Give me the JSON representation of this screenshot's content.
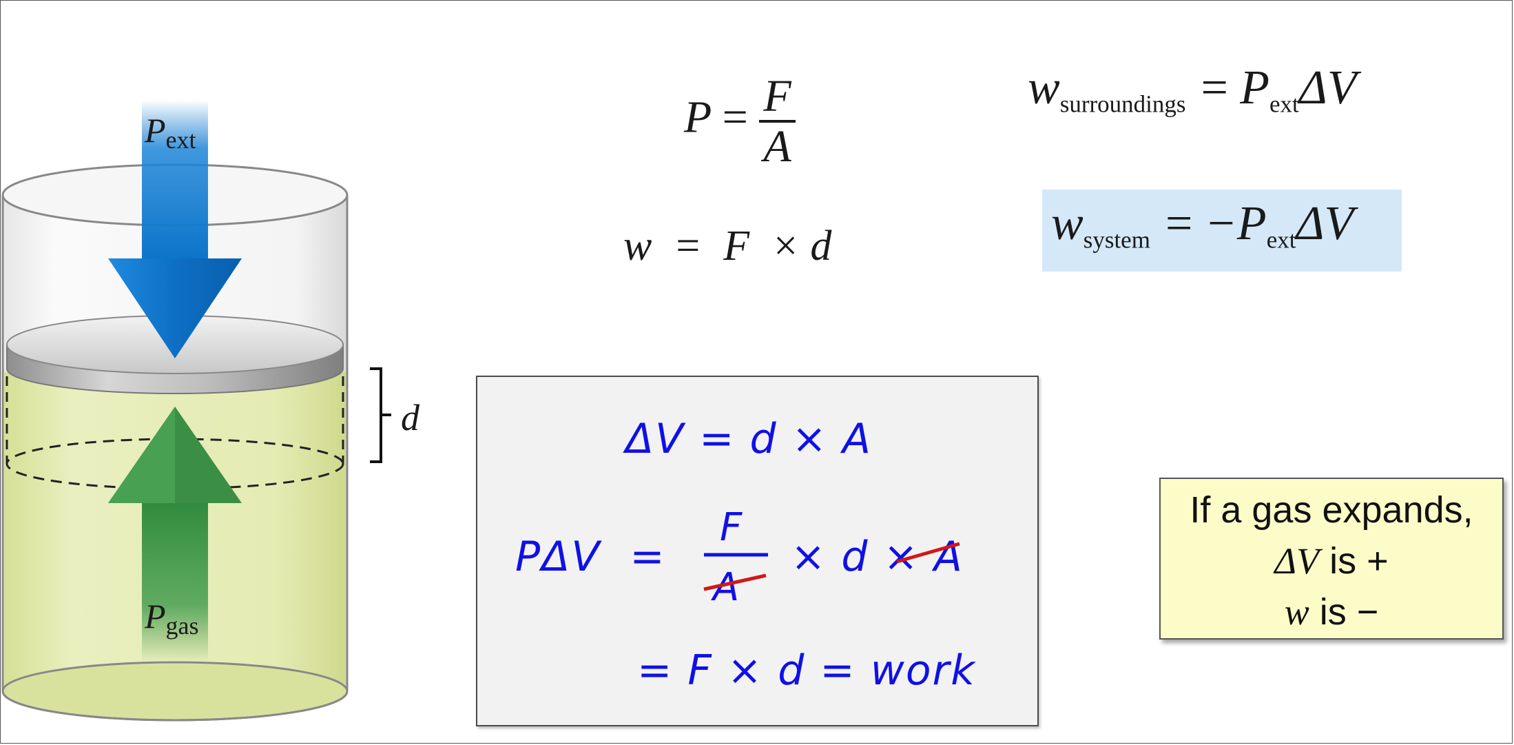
{
  "diagram": {
    "label_p": "P",
    "label_ext": "ext",
    "label_gas": "gas",
    "label_d": "d"
  },
  "equations": {
    "pressure": {
      "lhs": "P",
      "op": "=",
      "num": "F",
      "den": "A"
    },
    "work": "w  =  F  × d",
    "w_surroundings": {
      "w": "w",
      "sub": "surroundings",
      "rhs_p": "= P",
      "rhs_sub": "ext",
      "rhs_end": "ΔV"
    },
    "w_system": {
      "w": "w",
      "sub": "system",
      "rhs_p": "= −P",
      "rhs_sub": "ext",
      "rhs_end": "ΔV"
    }
  },
  "work_box": {
    "line1": "ΔV = d × A",
    "line2_left": "PΔV  =",
    "frac_num": "F",
    "frac_den": "A",
    "line2_right": "× d × A",
    "line3": "= F × d = work",
    "strike_color": "#d01818",
    "ink_color": "#1010e6"
  },
  "note": {
    "line1": "If a gas expands,",
    "line2_sym": "ΔV",
    "line2_text": " is +",
    "line3_sym": "w",
    "line3_text": " is −"
  },
  "colors": {
    "pressure_arrow": "#0b73c9",
    "gas_arrow": "#2f8a3c",
    "gas_fill": "#dfe8a8",
    "highlight": "#d4e8f7",
    "note_bg": "#fbfcc8"
  }
}
